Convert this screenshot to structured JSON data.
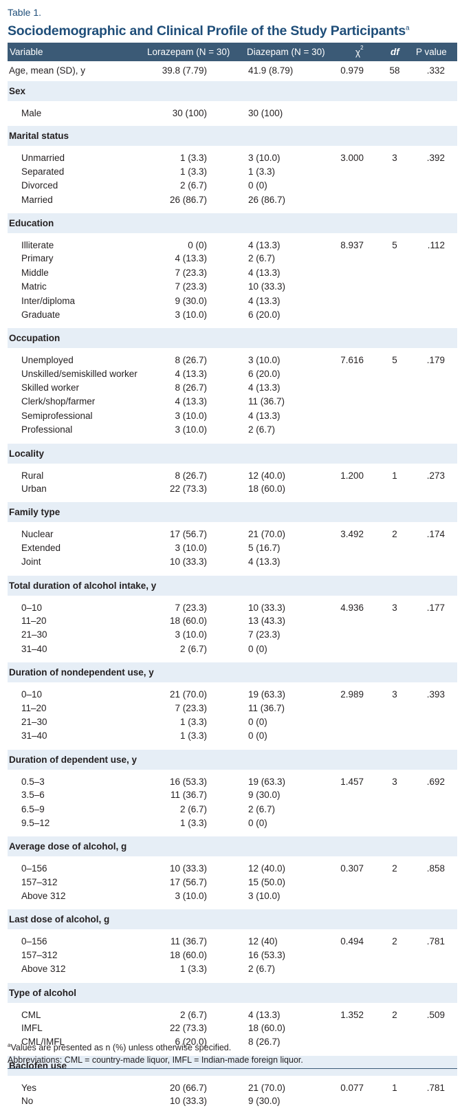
{
  "table_label": "Table 1.",
  "title": "Sociodemographic and Clinical Profile of the Study Participants",
  "title_sup": "a",
  "columns": [
    "Variable",
    "Lorazepam (N = 30)",
    "Diazepam (N = 30)",
    "χ",
    "2",
    "df",
    "P value"
  ],
  "rows": [
    {
      "type": "data",
      "label": "Age, mean (SD), y",
      "lor": "39.8 (7.79)",
      "dia": "41.9 (8.79)",
      "chi": "0.979",
      "df": "58",
      "p": ".332"
    },
    {
      "type": "section",
      "label": "Sex"
    },
    {
      "type": "sub",
      "label": "Male",
      "lor": "30 (100)",
      "dia": "30 (100)"
    },
    {
      "type": "section",
      "label": "Marital status"
    },
    {
      "type": "sub",
      "label": "Unmarried",
      "lor": "1 (3.3)",
      "dia": "3 (10.0)",
      "chi": "3.000",
      "df": "3",
      "p": ".392"
    },
    {
      "type": "sub",
      "label": "Separated",
      "lor": "1 (3.3)",
      "dia": "1 (3.3)"
    },
    {
      "type": "sub",
      "label": "Divorced",
      "lor": "2 (6.7)",
      "dia": "0 (0)"
    },
    {
      "type": "sub",
      "label": "Married",
      "lor": "26 (86.7)",
      "dia": "26 (86.7)"
    },
    {
      "type": "section",
      "label": "Education"
    },
    {
      "type": "sub",
      "label": "Illiterate",
      "lor": "0 (0)",
      "dia": "4 (13.3)",
      "chi": "8.937",
      "df": "5",
      "p": ".112"
    },
    {
      "type": "sub",
      "label": "Primary",
      "lor": "4 (13.3)",
      "dia": "2 (6.7)"
    },
    {
      "type": "sub",
      "label": "Middle",
      "lor": "7 (23.3)",
      "dia": "4 (13.3)"
    },
    {
      "type": "sub",
      "label": "Matric",
      "lor": "7 (23.3)",
      "dia": "10 (33.3)"
    },
    {
      "type": "sub",
      "label": "Inter/diploma",
      "lor": "9 (30.0)",
      "dia": "4 (13.3)"
    },
    {
      "type": "sub",
      "label": "Graduate",
      "lor": "3 (10.0)",
      "dia": "6 (20.0)"
    },
    {
      "type": "section",
      "label": "Occupation"
    },
    {
      "type": "sub",
      "label": "Unemployed",
      "lor": "8 (26.7)",
      "dia": "3 (10.0)",
      "chi": "7.616",
      "df": "5",
      "p": ".179"
    },
    {
      "type": "sub",
      "label": "Unskilled/semiskilled worker",
      "lor": "4 (13.3)",
      "dia": "6 (20.0)"
    },
    {
      "type": "sub",
      "label": "Skilled worker",
      "lor": "8 (26.7)",
      "dia": "4 (13.3)"
    },
    {
      "type": "sub",
      "label": "Clerk/shop/farmer",
      "lor": "4 (13.3)",
      "dia": "11 (36.7)"
    },
    {
      "type": "sub",
      "label": "Semiprofessional",
      "lor": "3 (10.0)",
      "dia": "4 (13.3)"
    },
    {
      "type": "sub",
      "label": "Professional",
      "lor": "3 (10.0)",
      "dia": "2 (6.7)"
    },
    {
      "type": "section",
      "label": "Locality"
    },
    {
      "type": "sub",
      "label": "Rural",
      "lor": "8 (26.7)",
      "dia": "12 (40.0)",
      "chi": "1.200",
      "df": "1",
      "p": ".273"
    },
    {
      "type": "sub",
      "label": "Urban",
      "lor": "22 (73.3)",
      "dia": "18 (60.0)"
    },
    {
      "type": "section",
      "label": "Family type"
    },
    {
      "type": "sub",
      "label": "Nuclear",
      "lor": "17 (56.7)",
      "dia": "21 (70.0)",
      "chi": "3.492",
      "df": "2",
      "p": ".174"
    },
    {
      "type": "sub",
      "label": "Extended",
      "lor": "3 (10.0)",
      "dia": "5 (16.7)"
    },
    {
      "type": "sub",
      "label": "Joint",
      "lor": "10 (33.3)",
      "dia": "4 (13.3)"
    },
    {
      "type": "section",
      "label": "Total duration of alcohol intake, y"
    },
    {
      "type": "sub",
      "label": "0–10",
      "lor": "7 (23.3)",
      "dia": "10 (33.3)",
      "chi": "4.936",
      "df": "3",
      "p": ".177"
    },
    {
      "type": "sub",
      "label": "11–20",
      "lor": "18 (60.0)",
      "dia": "13 (43.3)"
    },
    {
      "type": "sub",
      "label": "21–30",
      "lor": "3 (10.0)",
      "dia": "7 (23.3)"
    },
    {
      "type": "sub",
      "label": "31–40",
      "lor": "2 (6.7)",
      "dia": "0 (0)"
    },
    {
      "type": "section",
      "label": "Duration of nondependent use, y"
    },
    {
      "type": "sub",
      "label": "0–10",
      "lor": "21 (70.0)",
      "dia": "19 (63.3)",
      "chi": "2.989",
      "df": "3",
      "p": ".393"
    },
    {
      "type": "sub",
      "label": "11–20",
      "lor": "7 (23.3)",
      "dia": "11 (36.7)"
    },
    {
      "type": "sub",
      "label": "21–30",
      "lor": "1 (3.3)",
      "dia": "0 (0)"
    },
    {
      "type": "sub",
      "label": "31–40",
      "lor": "1 (3.3)",
      "dia": "0 (0)"
    },
    {
      "type": "section",
      "label": "Duration of dependent use, y"
    },
    {
      "type": "sub",
      "label": "0.5–3",
      "lor": "16 (53.3)",
      "dia": "19 (63.3)",
      "chi": "1.457",
      "df": "3",
      "p": ".692"
    },
    {
      "type": "sub",
      "label": "3.5–6",
      "lor": "11 (36.7)",
      "dia": "9 (30.0)"
    },
    {
      "type": "sub",
      "label": "6.5–9",
      "lor": "2 (6.7)",
      "dia": "2 (6.7)"
    },
    {
      "type": "sub",
      "label": "9.5–12",
      "lor": "1 (3.3)",
      "dia": "0 (0)"
    },
    {
      "type": "section",
      "label": "Average dose of alcohol, g"
    },
    {
      "type": "sub",
      "label": "0–156",
      "lor": "10 (33.3)",
      "dia": "12 (40.0)",
      "chi": "0.307",
      "df": "2",
      "p": ".858"
    },
    {
      "type": "sub",
      "label": "157–312",
      "lor": "17 (56.7)",
      "dia": "15 (50.0)"
    },
    {
      "type": "sub",
      "label": "Above 312",
      "lor": "3 (10.0)",
      "dia": "3 (10.0)"
    },
    {
      "type": "section",
      "label": "Last dose of alcohol, g"
    },
    {
      "type": "sub",
      "label": "0–156",
      "lor": "11 (36.7)",
      "dia": "12 (40)",
      "chi": "0.494",
      "df": "2",
      "p": ".781"
    },
    {
      "type": "sub",
      "label": "157–312",
      "lor": "18 (60.0)",
      "dia": "16 (53.3)"
    },
    {
      "type": "sub",
      "label": "Above 312",
      "lor": "1 (3.3)",
      "dia": "2 (6.7)"
    },
    {
      "type": "section",
      "label": "Type of alcohol"
    },
    {
      "type": "sub",
      "label": "CML",
      "lor": "2 (6.7)",
      "dia": "4 (13.3)",
      "chi": "1.352",
      "df": "2",
      "p": ".509"
    },
    {
      "type": "sub",
      "label": "IMFL",
      "lor": "22 (73.3)",
      "dia": "18 (60.0)"
    },
    {
      "type": "sub",
      "label": "CML/IMFL",
      "lor": "6 (20.0)",
      "dia": "8 (26.7)"
    },
    {
      "type": "section",
      "label": "Baclofen use"
    },
    {
      "type": "sub",
      "label": "Yes",
      "lor": "20 (66.7)",
      "dia": "21 (70.0)",
      "chi": "0.077",
      "df": "1",
      "p": ".781"
    },
    {
      "type": "sub",
      "label": "No",
      "lor": "10 (33.3)",
      "dia": "9 (30.0)"
    }
  ],
  "footnotes": {
    "sup": "a",
    "note_a": "Values are presented as n (%) unless otherwise specified.",
    "abbrev": "Abbreviations: CML = country-made liquor, IMFL = Indian-made foreign liquor."
  }
}
